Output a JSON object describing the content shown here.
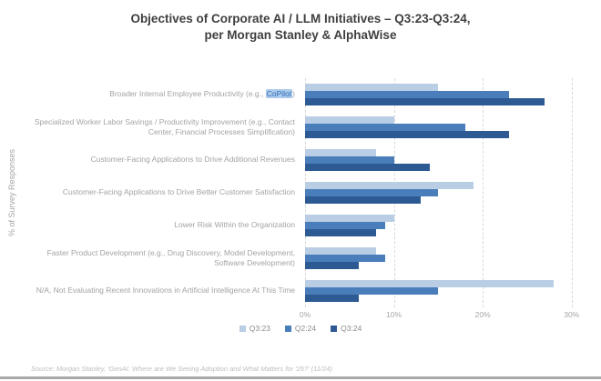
{
  "title": {
    "line1": "Objectives of Corporate AI / LLM Initiatives – Q3:23-Q3:24,",
    "line2": "per Morgan Stanley & AlphaWise"
  },
  "y_axis_label": "% of Survey Responses",
  "source_note": "Source: Morgan Stanley, 'GenAI: Where are We Seeing Adoption and What Matters for '25?' (11/24)",
  "colors": {
    "series_q3_23": "#b9cde5",
    "series_q2_24": "#4a7ebb",
    "series_q3_24": "#2e5a94",
    "title_text": "#3f3f3f",
    "axis_text": "#a6a6a6",
    "category_text": "#a3a3a3",
    "gridline": "#d9d9d9",
    "highlight_background": "#aecbec",
    "highlight_text": "#2d6db5"
  },
  "chart_data": {
    "type": "bar",
    "orientation": "horizontal",
    "title": "Objectives of Corporate AI / LLM Initiatives – Q3:23-Q3:24, per Morgan Stanley & AlphaWise",
    "ylabel": "% of Survey Responses",
    "xlabel": "",
    "grid": "vertical-dashed",
    "legend_position": "bottom-center",
    "categories": [
      "Broader Internal Employee Productivity (e.g., CoPilot)",
      "Specialized Worker Labor Savings / Productivity Improvement (e.g., Contact Center, Financial Processes Simplification)",
      "Customer-Facing Applications to Drive Additional Revenues",
      "Customer-Facing Applications to Drive Better Customer Satisfaction",
      "Lower Risk Within the Organization",
      "Faster Product Development (e.g., Drug Discovery, Model Development, Software Development)",
      "N/A, Not Evaluating Recent Innovations in Artificial Intelligence At This Time"
    ],
    "series": [
      {
        "name": "Q3:23",
        "color": "#b9cde5",
        "values": [
          15,
          10,
          8,
          19,
          10,
          8,
          28
        ]
      },
      {
        "name": "Q2:24",
        "color": "#4a7ebb",
        "values": [
          23,
          18,
          10,
          15,
          9,
          9,
          15
        ]
      },
      {
        "name": "Q3:24",
        "color": "#2e5a94",
        "values": [
          27,
          23,
          14,
          13,
          8,
          6,
          6
        ]
      }
    ],
    "x_ticks": [
      {
        "label": "0%",
        "value": 0
      },
      {
        "label": "10%",
        "value": 10
      },
      {
        "label": "20%",
        "value": 20
      },
      {
        "label": "30%",
        "value": 30
      }
    ],
    "x_max": 33,
    "highlight": {
      "category_index": 0,
      "text": "CoPilot"
    }
  },
  "legend": {
    "items": [
      "Q3:23",
      "Q2:24",
      "Q3:24"
    ]
  }
}
